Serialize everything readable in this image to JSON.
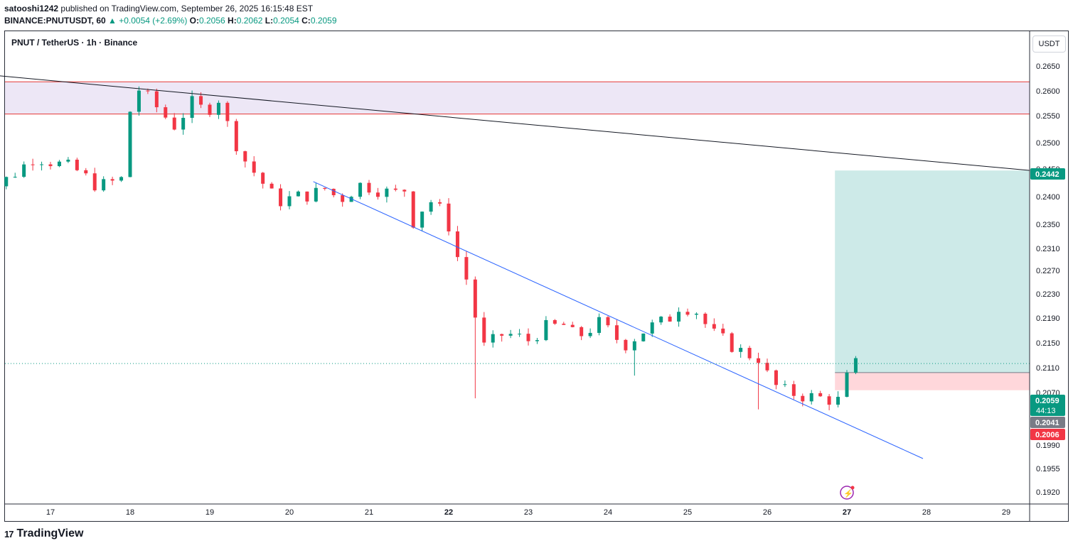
{
  "header": {
    "author": "satooshi1242",
    "published_text": "published on TradingView.com, September 26, 2025 16:15:48 EST",
    "symbol_line": "BINANCE:PNUTUSDT, 60",
    "change": "▲ +0.0054 (+2.69%)",
    "open_label": "O:",
    "open_value": "0.2056",
    "high_label": "H:",
    "high_value": "0.2062",
    "low_label": "L:",
    "low_value": "0.2054",
    "close_label": "C:",
    "close_value": "0.2059"
  },
  "legend": {
    "title": "PNUT / TetherUS · 1h · Binance"
  },
  "unit_button": "USDT",
  "brand": {
    "logo_text": "17",
    "name": "TradingView"
  },
  "colors": {
    "up": "#089981",
    "down": "#f23645",
    "trendline_blue": "#2962ff",
    "resistance_zone": "#ede7f6",
    "zone_border": "#e53935",
    "target_zone": "#b2dfdb",
    "stop_zone": "#ffcdd2"
  },
  "chart_data": {
    "type": "candlestick",
    "x_ticks": [
      "17",
      "18",
      "19",
      "20",
      "21",
      "22",
      "23",
      "24",
      "25",
      "26",
      "27",
      "28",
      "29"
    ],
    "y_ticks": [
      "0.2650",
      "0.2600",
      "0.2550",
      "0.2500",
      "0.2450",
      "0.2400",
      "0.2350",
      "0.2310",
      "0.2270",
      "0.2230",
      "0.2190",
      "0.2150",
      "0.2110",
      "0.2070",
      "0.1990",
      "0.1955",
      "0.1920"
    ],
    "price_labels": [
      {
        "text": "0.2442",
        "color": "#089981"
      },
      {
        "text": "0.2059",
        "sub": "44:13",
        "color": "#089981"
      },
      {
        "text": "0.2041",
        "color": "#787b86"
      },
      {
        "text": "0.2006",
        "color": "#f23645"
      }
    ],
    "resistance_zone": {
      "top": 0.2618,
      "bottom": 0.2554
    },
    "long_position": {
      "entry": 0.2041,
      "target": 0.2442,
      "stop": 0.2006,
      "start_day": 26.85,
      "end_day": 29.3
    },
    "black_trendline": {
      "from": [
        16.0,
        0.2635
      ],
      "to": [
        29.3,
        0.2442
      ]
    },
    "blue_trendline": {
      "from": [
        20.3,
        0.242
      ],
      "to": [
        26.2,
        0.1972
      ]
    },
    "current_price": 0.2059,
    "path": [
      [
        16.0,
        0.238
      ],
      [
        16.5,
        0.243
      ],
      [
        16.8,
        0.247
      ],
      [
        17.3,
        0.2445
      ],
      [
        17.6,
        0.241
      ],
      [
        17.9,
        0.2425
      ],
      [
        18.0,
        0.256
      ],
      [
        18.1,
        0.2605
      ],
      [
        18.35,
        0.2565
      ],
      [
        18.55,
        0.253
      ],
      [
        18.8,
        0.258
      ],
      [
        18.95,
        0.2555
      ],
      [
        19.1,
        0.259
      ],
      [
        19.25,
        0.252
      ],
      [
        19.45,
        0.246
      ],
      [
        19.7,
        0.241
      ],
      [
        19.85,
        0.238
      ],
      [
        20.1,
        0.239
      ],
      [
        20.3,
        0.2395
      ],
      [
        20.5,
        0.241
      ],
      [
        20.6,
        0.238
      ],
      [
        20.9,
        0.2415
      ],
      [
        21.3,
        0.2395
      ],
      [
        21.45,
        0.2405
      ],
      [
        21.55,
        0.234
      ],
      [
        21.75,
        0.2385
      ],
      [
        21.95,
        0.2355
      ],
      [
        22.05,
        0.231
      ],
      [
        22.15,
        0.2245
      ],
      [
        22.25,
        0.222
      ],
      [
        22.38,
        0.2115
      ],
      [
        22.45,
        0.209
      ],
      [
        22.7,
        0.212
      ],
      [
        23.0,
        0.2105
      ],
      [
        23.2,
        0.213
      ],
      [
        23.45,
        0.2135
      ],
      [
        23.6,
        0.211
      ],
      [
        23.9,
        0.214
      ],
      [
        24.2,
        0.2095
      ],
      [
        24.5,
        0.213
      ],
      [
        24.75,
        0.2145
      ],
      [
        24.9,
        0.2175
      ],
      [
        25.1,
        0.2165
      ],
      [
        25.3,
        0.212
      ],
      [
        25.5,
        0.21
      ],
      [
        25.7,
        0.208
      ],
      [
        25.9,
        0.207
      ],
      [
        26.05,
        0.202
      ],
      [
        26.2,
        0.2005
      ],
      [
        26.45,
        0.1995
      ],
      [
        26.7,
        0.199
      ],
      [
        26.9,
        0.1985
      ],
      [
        27.0,
        0.203
      ],
      [
        27.1,
        0.2058
      ]
    ],
    "spikes": [
      [
        22.38,
        0.199
      ],
      [
        24.3,
        0.2035
      ],
      [
        20.05,
        0.2365
      ],
      [
        25.85,
        0.1968
      ]
    ]
  }
}
